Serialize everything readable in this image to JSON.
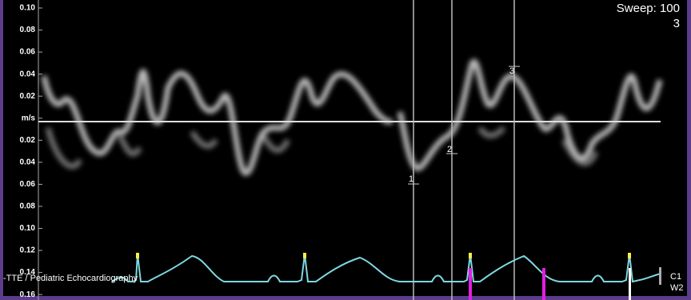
{
  "header": {
    "sweep": "Sweep: 100",
    "sweep_sub": "3"
  },
  "scale": {
    "labels": [
      "0.10",
      "0.08",
      "0.06",
      "0.04",
      "0.02",
      "m/s",
      "0.02",
      "0.04",
      "0.06",
      "0.08",
      "0.10",
      "0.12",
      "0.14",
      "0.16"
    ]
  },
  "cursors": [
    "1",
    "2",
    "3"
  ],
  "footer": {
    "preset": "-TTE / Pediatric Echocardiography",
    "right_top": "C1",
    "right_bottom": "W2"
  }
}
